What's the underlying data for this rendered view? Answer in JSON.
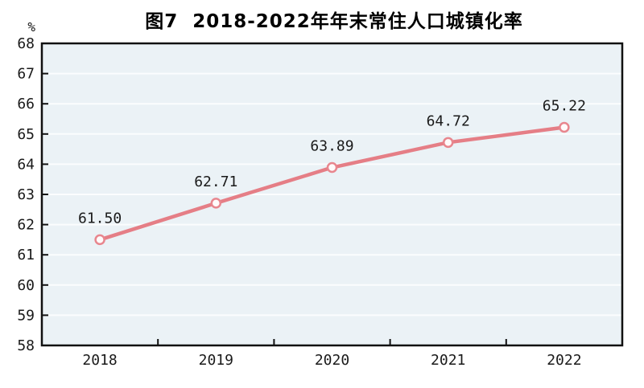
{
  "chart_data": {
    "type": "line",
    "title": "图7  2018-2022年年末常住人口城镇化率",
    "ylabel_unit": "%",
    "categories": [
      "2018",
      "2019",
      "2020",
      "2021",
      "2022"
    ],
    "series": [
      {
        "name": "年末常住人口城镇化率",
        "values": [
          61.5,
          62.71,
          63.89,
          64.72,
          65.22
        ],
        "labels": [
          "61.50",
          "62.71",
          "63.89",
          "64.72",
          "65.22"
        ]
      }
    ],
    "ylim": [
      58,
      68
    ],
    "ytick_step": 1,
    "ytick_labels": [
      "58",
      "59",
      "60",
      "61",
      "62",
      "63",
      "64",
      "65",
      "66",
      "67",
      "68"
    ],
    "grid": true,
    "legend": "none",
    "marker": "open-circle",
    "colors": {
      "line": "#e57e86",
      "marker_fill": "#fffafa",
      "marker_stroke": "#e8868e",
      "plot_background": "#ebf2f6",
      "gridline": "#fbfdfe",
      "axis": "#111111",
      "text": "#1a1a1a"
    }
  }
}
